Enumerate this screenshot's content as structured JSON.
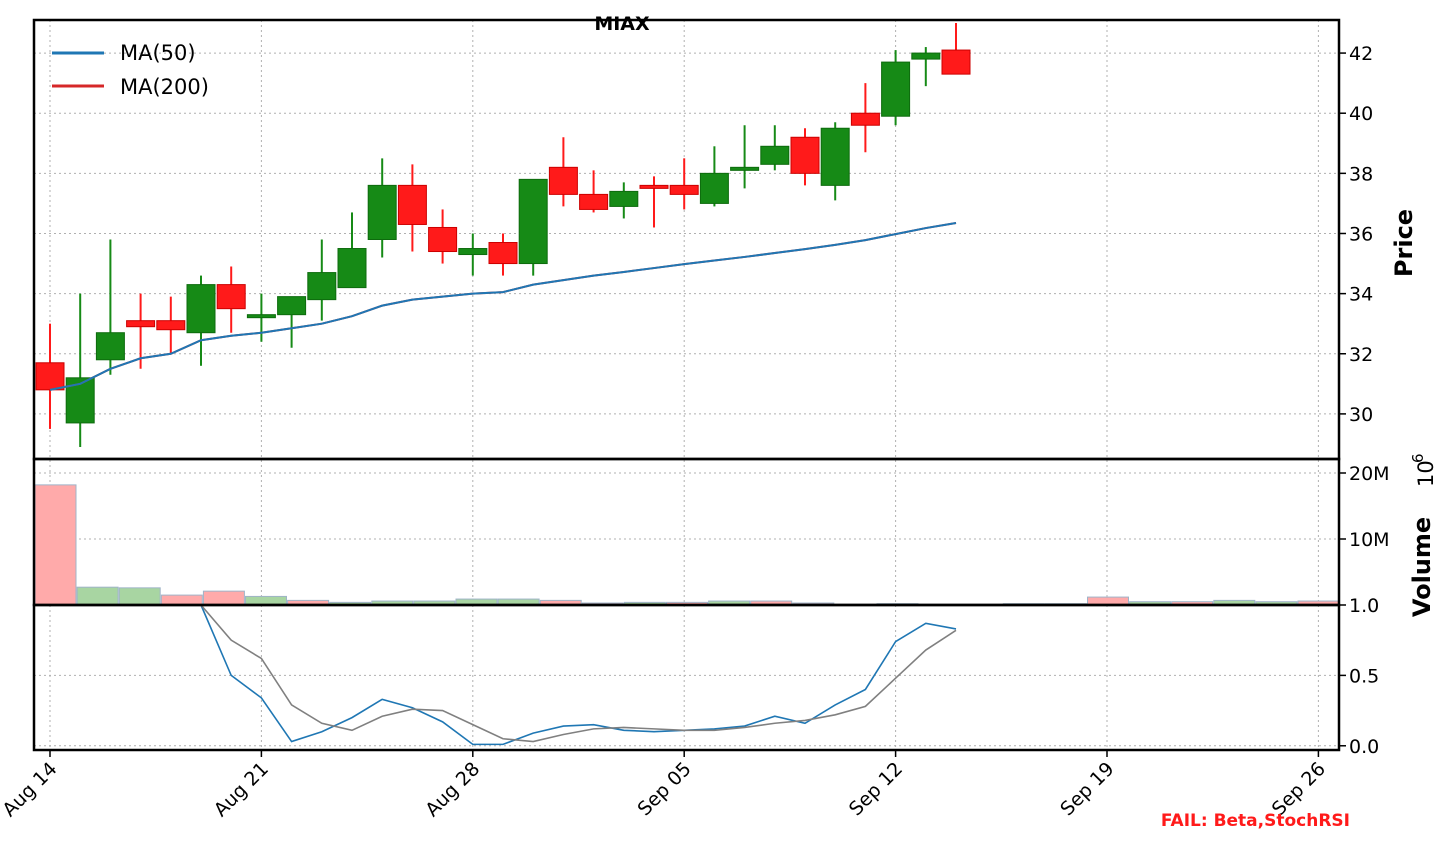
{
  "chart_data": [
    {
      "type": "candlestick",
      "title": "MIAX",
      "ylabel": "Price",
      "ylim": [
        28.5,
        43.1
      ],
      "yticks": [
        "30",
        "32",
        "34",
        "36",
        "38",
        "40",
        "42"
      ],
      "xticks": [
        "Aug 14",
        "Aug 21",
        "Aug 28",
        "Sep 05",
        "Sep 12",
        "Sep 19",
        "Sep 26"
      ],
      "grid": true,
      "legend": {
        "placement": "top-left",
        "entries": [
          {
            "name": "MA(50)",
            "color": "#1f77b4"
          },
          {
            "name": "MA(200)",
            "color": "#d62728"
          }
        ]
      },
      "colors": {
        "up": "#168a16",
        "down": "#ff1a1a"
      },
      "candles": [
        {
          "x": 0,
          "o": 31.7,
          "h": 33.0,
          "l": 29.5,
          "c": 30.8
        },
        {
          "x": 1,
          "o": 29.7,
          "h": 34.0,
          "l": 28.9,
          "c": 31.2
        },
        {
          "x": 2,
          "o": 31.8,
          "h": 35.8,
          "l": 31.3,
          "c": 32.7
        },
        {
          "x": 3,
          "o": 33.1,
          "h": 34.0,
          "l": 31.5,
          "c": 32.9
        },
        {
          "x": 4,
          "o": 33.1,
          "h": 33.9,
          "l": 32.0,
          "c": 32.8
        },
        {
          "x": 5,
          "o": 32.7,
          "h": 34.6,
          "l": 31.6,
          "c": 34.3
        },
        {
          "x": 6,
          "o": 34.3,
          "h": 34.9,
          "l": 32.7,
          "c": 33.5
        },
        {
          "x": 7,
          "o": 33.2,
          "h": 34.0,
          "l": 32.4,
          "c": 33.3
        },
        {
          "x": 8,
          "o": 33.3,
          "h": 33.9,
          "l": 32.2,
          "c": 33.9
        },
        {
          "x": 9,
          "o": 33.8,
          "h": 35.8,
          "l": 33.1,
          "c": 34.7
        },
        {
          "x": 10,
          "o": 34.2,
          "h": 36.7,
          "l": 34.2,
          "c": 35.5
        },
        {
          "x": 11,
          "o": 35.8,
          "h": 38.5,
          "l": 35.2,
          "c": 37.6
        },
        {
          "x": 12,
          "o": 37.6,
          "h": 38.3,
          "l": 35.4,
          "c": 36.3
        },
        {
          "x": 13,
          "o": 36.2,
          "h": 36.8,
          "l": 35.0,
          "c": 35.4
        },
        {
          "x": 14,
          "o": 35.3,
          "h": 36.0,
          "l": 34.6,
          "c": 35.5
        },
        {
          "x": 15,
          "o": 35.7,
          "h": 36.0,
          "l": 34.6,
          "c": 35.0
        },
        {
          "x": 16,
          "o": 35.0,
          "h": 37.8,
          "l": 34.6,
          "c": 37.8
        },
        {
          "x": 17,
          "o": 38.2,
          "h": 39.2,
          "l": 36.9,
          "c": 37.3
        },
        {
          "x": 18,
          "o": 37.3,
          "h": 38.1,
          "l": 36.7,
          "c": 36.8
        },
        {
          "x": 19,
          "o": 36.9,
          "h": 37.7,
          "l": 36.5,
          "c": 37.4
        },
        {
          "x": 20,
          "o": 37.6,
          "h": 37.9,
          "l": 36.2,
          "c": 37.5
        },
        {
          "x": 21,
          "o": 37.6,
          "h": 38.5,
          "l": 36.8,
          "c": 37.3
        },
        {
          "x": 22,
          "o": 37.0,
          "h": 38.9,
          "l": 36.9,
          "c": 38.0
        },
        {
          "x": 23,
          "o": 38.1,
          "h": 39.6,
          "l": 37.5,
          "c": 38.2
        },
        {
          "x": 24,
          "o": 38.3,
          "h": 39.6,
          "l": 38.1,
          "c": 38.9
        },
        {
          "x": 25,
          "o": 39.2,
          "h": 39.5,
          "l": 37.6,
          "c": 38.0
        },
        {
          "x": 26,
          "o": 37.6,
          "h": 39.7,
          "l": 37.1,
          "c": 39.5
        },
        {
          "x": 27,
          "o": 40.0,
          "h": 41.0,
          "l": 38.7,
          "c": 39.6
        },
        {
          "x": 28,
          "o": 39.9,
          "h": 42.1,
          "l": 39.6,
          "c": 41.7
        },
        {
          "x": 29,
          "o": 41.8,
          "h": 42.2,
          "l": 40.9,
          "c": 42.0
        },
        {
          "x": 30,
          "o": 42.1,
          "h": 43.0,
          "l": 41.3,
          "c": 41.3
        }
      ],
      "series": [
        {
          "name": "MA(50)",
          "color": "#1f77b4",
          "values": [
            30.8,
            31.0,
            31.5,
            31.85,
            32.0,
            32.45,
            32.6,
            32.7,
            32.85,
            33.0,
            33.25,
            33.6,
            33.8,
            33.9,
            34.0,
            34.05,
            34.3,
            34.45,
            34.6,
            34.72,
            34.85,
            34.98,
            35.1,
            35.22,
            35.35,
            35.48,
            35.62,
            35.78,
            35.98,
            36.18,
            36.35
          ]
        },
        {
          "name": "MA(200)",
          "color": "#d62728",
          "values": [
            30.8,
            31.0,
            31.5,
            31.85,
            32.0,
            32.45,
            32.6,
            32.7,
            32.85,
            33.0,
            33.25,
            33.6,
            33.8,
            33.9,
            34.0,
            34.05,
            34.3,
            34.45,
            34.6,
            34.72,
            34.85,
            34.98,
            35.1,
            35.22,
            35.35,
            35.48,
            35.62,
            35.78,
            35.98,
            36.18,
            36.35
          ]
        }
      ]
    },
    {
      "type": "bar",
      "ylabel": "Volume",
      "yexponent": "10",
      "yexponent_power": "6",
      "ylim": [
        0,
        20
      ],
      "yticks": [
        "10M",
        "20M"
      ],
      "grid": true,
      "colors": {
        "up": "#a8d5a2",
        "down": "#ffaaaa"
      },
      "values": [
        18.2,
        2.7,
        2.6,
        1.5,
        2.1,
        1.3,
        0.7,
        0.4,
        0.6,
        0.6,
        0.9,
        0.9,
        0.7,
        0.3,
        0.4,
        0.4,
        0.6,
        0.6,
        0.3,
        0.1,
        0.2,
        0.1,
        0.1,
        0.2,
        0.2,
        1.2,
        0.5,
        0.5,
        0.7,
        0.5,
        0.6
      ],
      "direction": [
        "down",
        "up",
        "up",
        "down",
        "down",
        "up",
        "down",
        "up",
        "up",
        "up",
        "up",
        "up",
        "down",
        "down",
        "up",
        "down",
        "up",
        "down",
        "down",
        "up",
        "down",
        "down",
        "up",
        "up",
        "up",
        "down",
        "up",
        "down",
        "up",
        "up",
        "down"
      ]
    },
    {
      "type": "line",
      "name": "StochRSI",
      "ylim": [
        -0.03,
        1.0
      ],
      "yticks": [
        "0.0",
        "0.5",
        "1.0"
      ],
      "grid": true,
      "series": [
        {
          "color": "#1f77b4",
          "start": 5,
          "values": [
            1.0,
            0.5,
            0.34,
            0.03,
            0.1,
            0.2,
            0.33,
            0.27,
            0.17,
            0.01,
            0.01,
            0.09,
            0.14,
            0.15,
            0.11,
            0.1,
            0.11,
            0.12,
            0.14,
            0.21,
            0.16,
            0.29,
            0.4,
            0.74,
            0.87,
            0.83
          ]
        },
        {
          "color": "#808080",
          "start": 5,
          "values": [
            1.0,
            0.75,
            0.62,
            0.29,
            0.16,
            0.11,
            0.21,
            0.26,
            0.25,
            0.15,
            0.05,
            0.03,
            0.08,
            0.12,
            0.13,
            0.12,
            0.11,
            0.11,
            0.13,
            0.16,
            0.18,
            0.22,
            0.28,
            0.48,
            0.68,
            0.82
          ]
        }
      ]
    }
  ],
  "status": {
    "fail_text": "FAIL: Beta,StochRSI"
  }
}
